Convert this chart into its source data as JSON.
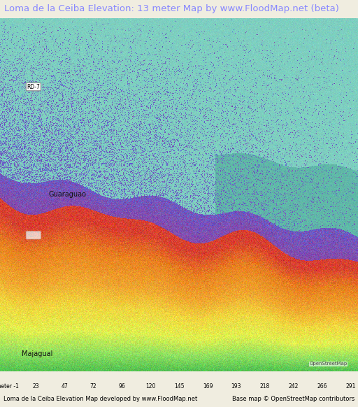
{
  "title": "Loma de la Ceiba Elevation: 13 meter Map by www.FloodMap.net (beta)",
  "title_color": "#8888ff",
  "title_fontsize": 9.5,
  "background_color": "#f0ede0",
  "colorbar_labels": [
    "meter -1",
    "23",
    "47",
    "72",
    "96",
    "120",
    "145",
    "169",
    "193",
    "218",
    "242",
    "266",
    "291"
  ],
  "colorbar_colors": [
    "#7ecfc0",
    "#7070cc",
    "#9070c0",
    "#b060b0",
    "#d84040",
    "#e06020",
    "#e89040",
    "#f0b840",
    "#f0d840",
    "#e8f040",
    "#a0e060",
    "#50c850"
  ],
  "footer_left": "Loma de la Ceiba Elevation Map developed by www.FloodMap.net",
  "footer_right": "Base map © OpenStreetMap contributors",
  "footer_fontsize": 6.0
}
